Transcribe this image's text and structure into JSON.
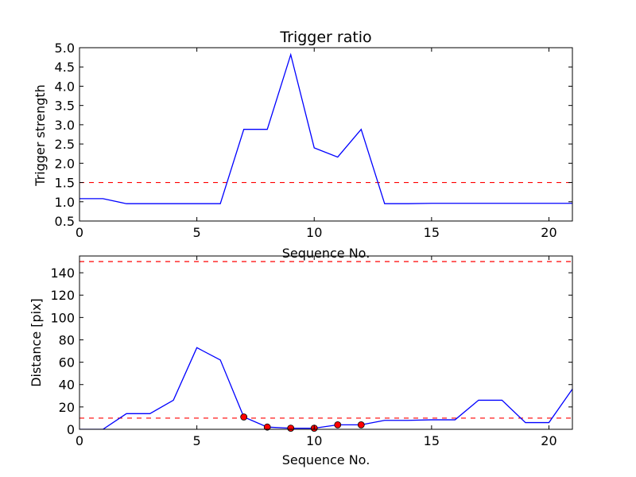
{
  "chart_data": [
    {
      "type": "line",
      "title": "Trigger ratio",
      "xlabel": "Sequence No.",
      "ylabel": "Trigger strength",
      "xlim": [
        0,
        21
      ],
      "ylim": [
        0.5,
        5.0
      ],
      "xticks": [
        "0",
        "5",
        "10",
        "15",
        "20"
      ],
      "yticks": [
        "0.5",
        "1.0",
        "1.5",
        "2.0",
        "2.5",
        "3.0",
        "3.5",
        "4.0",
        "4.5",
        "5.0"
      ],
      "grid": false,
      "series": [
        {
          "color": "#0000ff",
          "style": "solid",
          "x": [
            0,
            1,
            2,
            3,
            4,
            5,
            6,
            7,
            8,
            9,
            10,
            11,
            12,
            13,
            14,
            15,
            16,
            17,
            18,
            19,
            20,
            21
          ],
          "y": [
            1.08,
            1.08,
            0.95,
            0.95,
            0.95,
            0.95,
            0.95,
            2.88,
            2.88,
            4.82,
            2.4,
            2.16,
            2.88,
            0.95,
            0.95,
            0.96,
            0.96,
            0.96,
            0.96,
            0.96,
            0.96,
            0.96
          ]
        }
      ],
      "reference_lines": [
        {
          "y": 1.5,
          "color": "#ff0000",
          "style": "dashed"
        }
      ]
    },
    {
      "type": "line",
      "title": "",
      "xlabel": "Sequence No.",
      "ylabel": "Distance [pix]",
      "xlim": [
        0,
        21
      ],
      "ylim": [
        0,
        155
      ],
      "xticks": [
        "0",
        "5",
        "10",
        "15",
        "20"
      ],
      "yticks": [
        "0",
        "20",
        "40",
        "60",
        "80",
        "100",
        "120",
        "140"
      ],
      "grid": false,
      "series": [
        {
          "color": "#0000ff",
          "style": "solid",
          "x": [
            0,
            1,
            2,
            3,
            4,
            5,
            6,
            7,
            8,
            9,
            10,
            11,
            12,
            13,
            14,
            15,
            16,
            17,
            18,
            19,
            20,
            21
          ],
          "y": [
            0,
            0,
            14,
            14,
            26,
            73,
            62,
            11,
            2,
            1,
            1,
            4,
            4,
            8,
            8,
            8.5,
            8.5,
            26,
            26,
            6,
            6,
            36
          ]
        }
      ],
      "markers": {
        "color": "#ff0000",
        "x": [
          7,
          8,
          9,
          10,
          11,
          12
        ],
        "y": [
          11,
          2,
          1,
          1,
          4,
          4
        ]
      },
      "reference_lines": [
        {
          "y": 10,
          "color": "#ff0000",
          "style": "dashed"
        },
        {
          "y": 150,
          "color": "#ff0000",
          "style": "dashed"
        }
      ]
    }
  ]
}
